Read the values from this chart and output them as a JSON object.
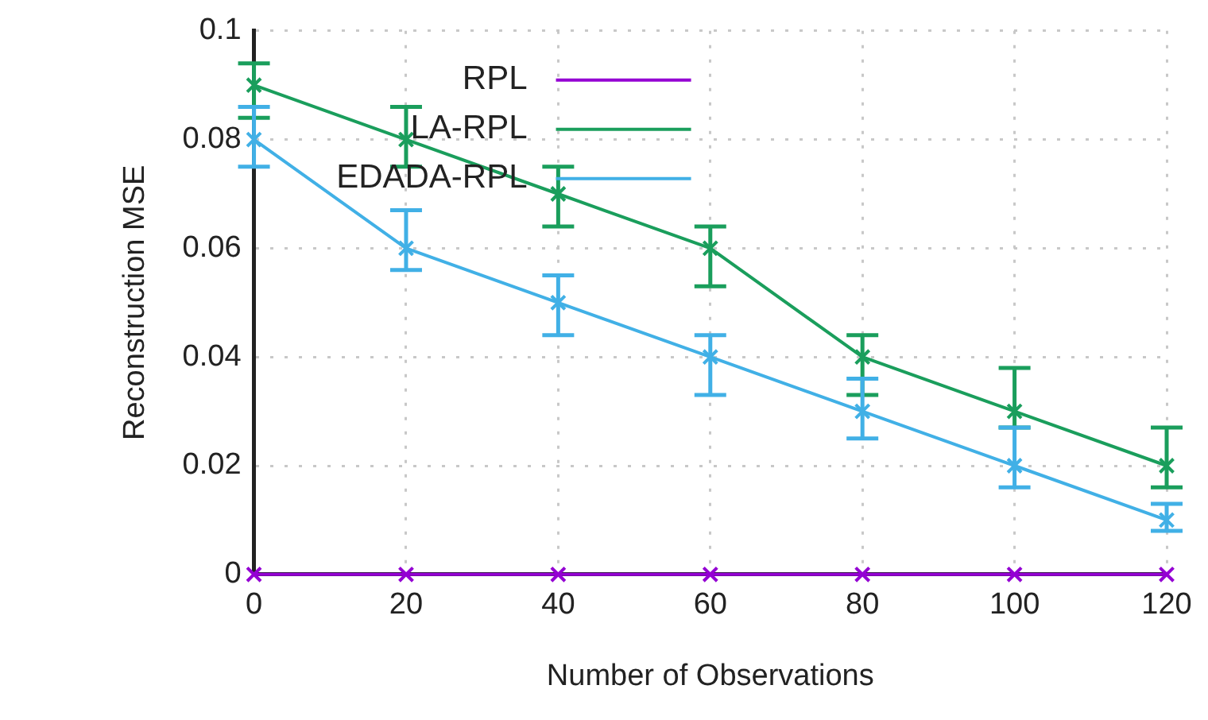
{
  "chart_data": {
    "type": "line",
    "xlabel": "Number of Observations",
    "ylabel": "Reconstruction MSE",
    "x": [
      0,
      20,
      40,
      60,
      80,
      100,
      120
    ],
    "series": [
      {
        "name": "RPL",
        "color": "#9400d3",
        "values": [
          0,
          0,
          0,
          0,
          0,
          0,
          0
        ],
        "marker": "cross"
      },
      {
        "name": "LA-RPL",
        "color": "#1a9e5c",
        "values": [
          0.09,
          0.08,
          0.07,
          0.06,
          0.04,
          0.03,
          0.02
        ],
        "marker": "cross",
        "errors": [
          [
            0.084,
            0.094
          ],
          [
            0.075,
            0.086
          ],
          [
            0.064,
            0.075
          ],
          [
            0.053,
            0.064
          ],
          [
            0.033,
            0.044
          ],
          [
            0.027,
            0.038
          ],
          [
            0.016,
            0.027
          ]
        ]
      },
      {
        "name": "EDADA-RPL",
        "color": "#41b0e6",
        "values": [
          0.08,
          0.06,
          0.05,
          0.04,
          0.03,
          0.02,
          0.01
        ],
        "marker": "cross",
        "errors": [
          [
            0.075,
            0.086
          ],
          [
            0.056,
            0.067
          ],
          [
            0.044,
            0.055
          ],
          [
            0.033,
            0.044
          ],
          [
            0.025,
            0.036
          ],
          [
            0.016,
            0.027
          ],
          [
            0.008,
            0.013
          ]
        ]
      }
    ],
    "xlim": [
      0,
      120
    ],
    "xticks": [
      0,
      20,
      40,
      60,
      80,
      100,
      120
    ],
    "ylim": [
      0,
      0.1
    ],
    "yticks": [
      0,
      0.02,
      0.04,
      0.06,
      0.08,
      0.1
    ],
    "grid": true,
    "legend": "top left",
    "line_style": "solid"
  }
}
